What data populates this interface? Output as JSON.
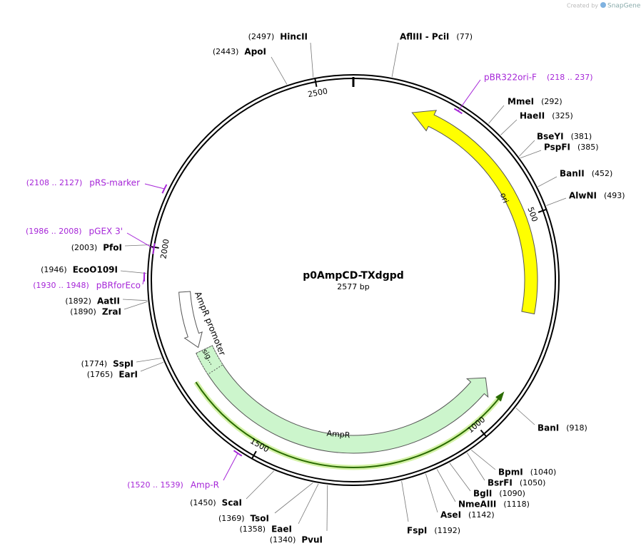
{
  "header": {
    "credit": "Created by",
    "brand": "SnapGene"
  },
  "map": {
    "name": "p0AmpCD-TXdgpd",
    "length": {
      "value": 2577,
      "label": "2577 bp"
    },
    "ticks": [
      500,
      1000,
      1500,
      2000,
      2500
    ],
    "sites": [
      {
        "name": "AflIII - PciI",
        "position": 77,
        "position_label": "(77)"
      },
      {
        "name": "MmeI",
        "position": 292,
        "position_label": "(292)"
      },
      {
        "name": "HaeII",
        "position": 325,
        "position_label": "(325)"
      },
      {
        "name": "BseYI",
        "position": 381,
        "position_label": "(381)"
      },
      {
        "name": "PspFI",
        "position": 385,
        "position_label": "(385)"
      },
      {
        "name": "BanII",
        "position": 452,
        "position_label": "(452)"
      },
      {
        "name": "AlwNI",
        "position": 493,
        "position_label": "(493)"
      },
      {
        "name": "BanI",
        "position": 918,
        "position_label": "(918)"
      },
      {
        "name": "BpmI",
        "position": 1040,
        "position_label": "(1040)"
      },
      {
        "name": "BsrFI",
        "position": 1050,
        "position_label": "(1050)"
      },
      {
        "name": "BglI",
        "position": 1090,
        "position_label": "(1090)"
      },
      {
        "name": "NmeAIII",
        "position": 1118,
        "position_label": "(1118)"
      },
      {
        "name": "AseI",
        "position": 1142,
        "position_label": "(1142)"
      },
      {
        "name": "FspI",
        "position": 1192,
        "position_label": "(1192)"
      },
      {
        "name": "PvuI",
        "position": 1340,
        "position_label": "(1340)"
      },
      {
        "name": "EaeI",
        "position": 1358,
        "position_label": "(1358)"
      },
      {
        "name": "TsoI",
        "position": 1369,
        "position_label": "(1369)"
      },
      {
        "name": "ScaI",
        "position": 1450,
        "position_label": "(1450)"
      },
      {
        "name": "EarI",
        "position": 1765,
        "position_label": "(1765)"
      },
      {
        "name": "SspI",
        "position": 1774,
        "position_label": "(1774)"
      },
      {
        "name": "ZraI",
        "position": 1890,
        "position_label": "(1890)"
      },
      {
        "name": "AatII",
        "position": 1892,
        "position_label": "(1892)"
      },
      {
        "name": "EcoO109I",
        "position": 1946,
        "position_label": "(1946)"
      },
      {
        "name": "PfoI",
        "position": 2003,
        "position_label": "(2003)"
      },
      {
        "name": "ApoI",
        "position": 2443,
        "position_label": "(2443)"
      },
      {
        "name": "HincII",
        "position": 2497,
        "position_label": "(2497)"
      }
    ],
    "primers": [
      {
        "name": "pBR322ori-F",
        "start": 218,
        "end": 237,
        "range_label": "(218 .. 237)"
      },
      {
        "name": "pRS-marker",
        "start": 2108,
        "end": 2127,
        "range_label": "(2108 .. 2127)"
      },
      {
        "name": "pGEX 3'",
        "start": 1986,
        "end": 2008,
        "range_label": "(1986 .. 2008)"
      },
      {
        "name": "pBRforEco",
        "start": 1930,
        "end": 1948,
        "range_label": "(1930 .. 1948)"
      },
      {
        "name": "Amp-R",
        "start": 1520,
        "end": 1539,
        "range_label": "(1520 .. 1539)"
      }
    ],
    "features": [
      {
        "name": "ori"
      },
      {
        "name": "AmpR"
      },
      {
        "name": "AmpR promoter"
      },
      {
        "name": "sig..."
      }
    ]
  }
}
